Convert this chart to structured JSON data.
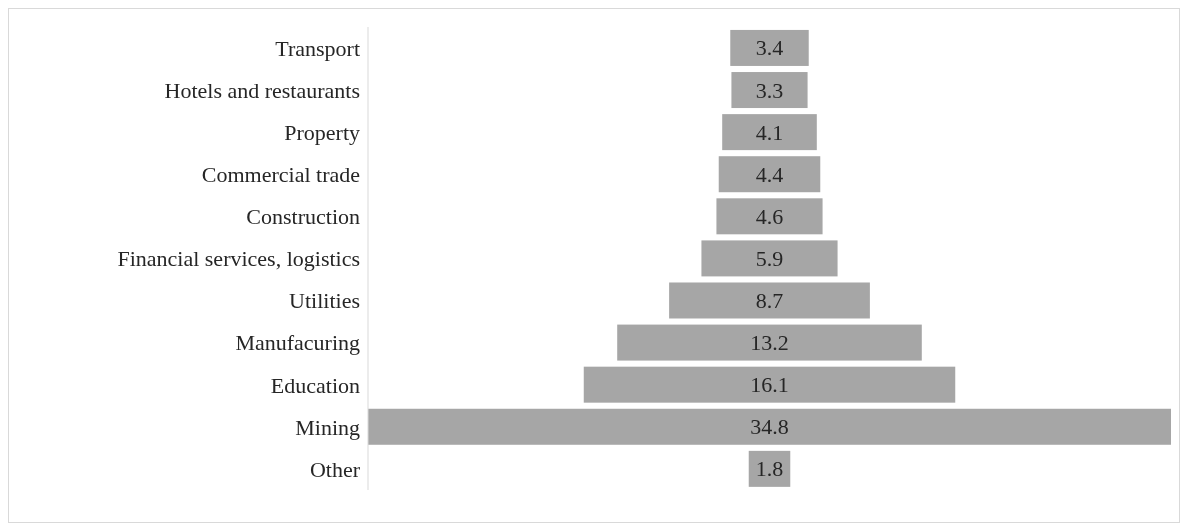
{
  "chart_data": {
    "type": "other",
    "categories": [
      "Transport",
      "Hotels and restaurants",
      "Property",
      "Commercial trade",
      "Construction",
      "Financial services, logistics",
      "Utilities",
      "Manufacuring",
      "Education",
      "Mining",
      "Other"
    ],
    "values": [
      3.4,
      3.3,
      4.1,
      4.4,
      4.6,
      5.9,
      8.7,
      13.2,
      16.1,
      34.8,
      1.8
    ],
    "color": "#a6a6a6",
    "data_labels": true
  }
}
